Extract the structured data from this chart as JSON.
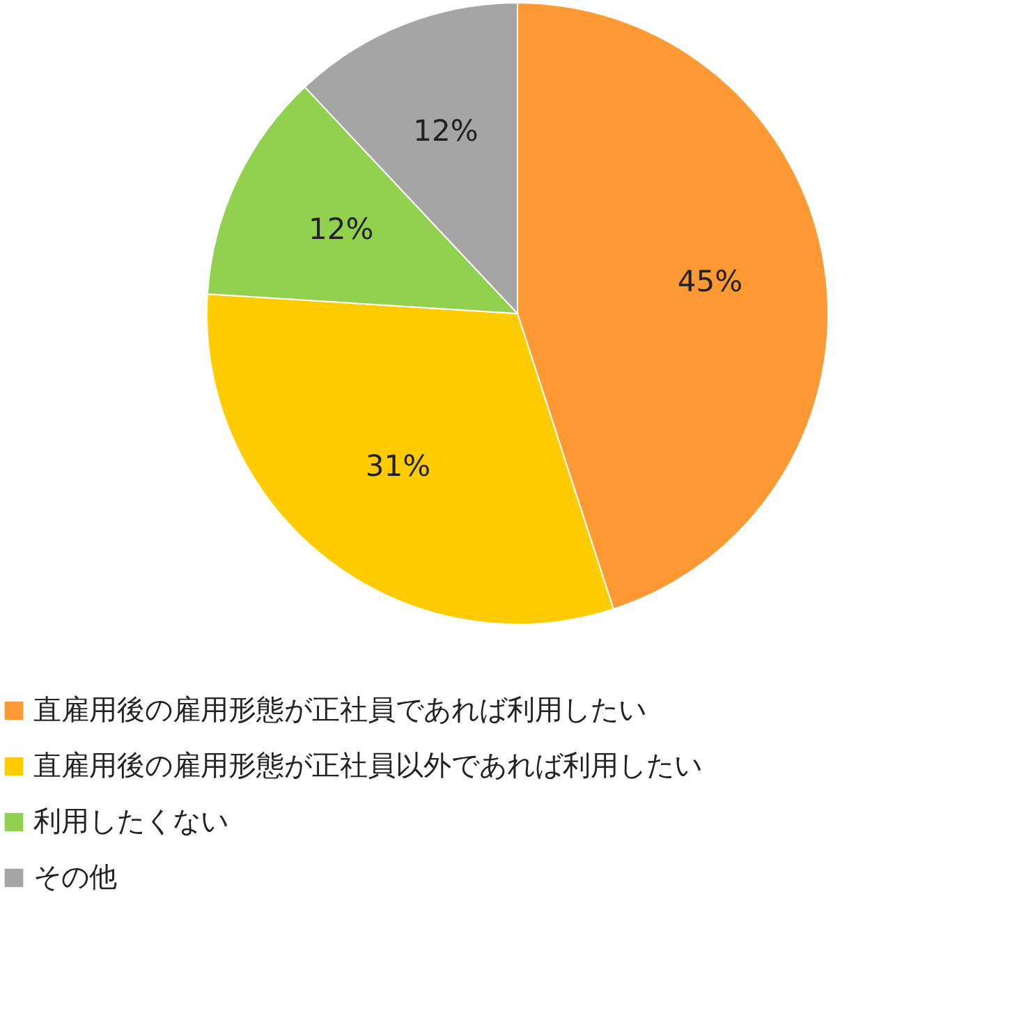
{
  "chart_data": {
    "type": "pie",
    "categories": [
      "直雇用後の雇用形態が正社員であれば利用したい",
      "直雇用後の雇用形態が正社員以外であれば利用したい",
      "利用したくない",
      "その他"
    ],
    "values": [
      45,
      31,
      12,
      12
    ],
    "colors": [
      "#ff9933",
      "#ffcc00",
      "#92d050",
      "#a5a5a5"
    ],
    "value_labels": [
      "45%",
      "31%",
      "12%",
      "12%"
    ],
    "legend": "bottom"
  }
}
